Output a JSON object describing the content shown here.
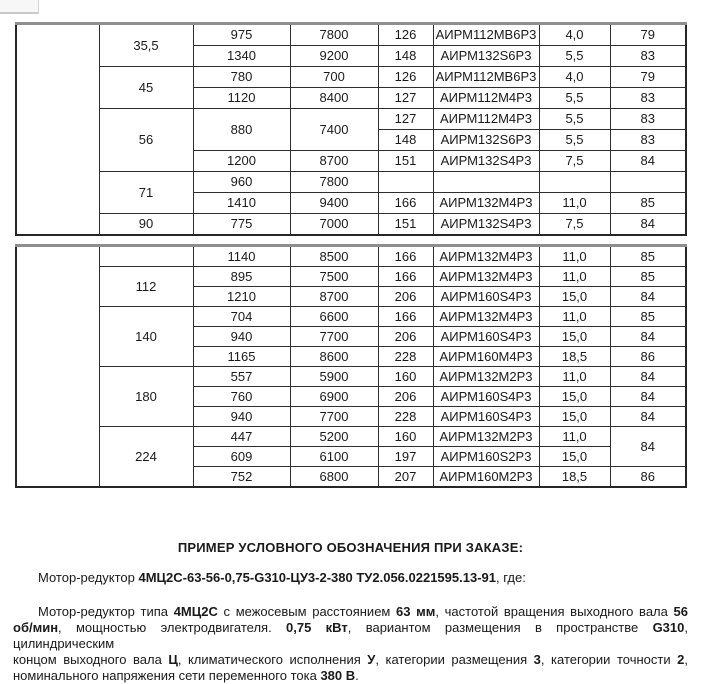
{
  "document": {
    "background": "#ffffff",
    "text_color": "#1a1a1a",
    "language": "ru"
  },
  "tables": [
    {
      "name": "upper-ratio-table",
      "rows": [
        [
          {
            "t": "",
            "rs": 10
          },
          {
            "t": "35,5",
            "rs": 2
          },
          {
            "t": "975"
          },
          {
            "t": "7800"
          },
          {
            "t": "126"
          },
          {
            "t": "АИРМ112МВ6Р3"
          },
          {
            "t": "4,0"
          },
          {
            "t": "79"
          }
        ],
        [
          {
            "t": "1340"
          },
          {
            "t": "9200"
          },
          {
            "t": "148"
          },
          {
            "t": "АИРМ132S6Р3"
          },
          {
            "t": "5,5"
          },
          {
            "t": "83"
          }
        ],
        [
          {
            "t": "45",
            "rs": 2
          },
          {
            "t": "780"
          },
          {
            "t": "700"
          },
          {
            "t": "126"
          },
          {
            "t": "АИРМ112МВ6Р3"
          },
          {
            "t": "4,0"
          },
          {
            "t": "79"
          }
        ],
        [
          {
            "t": "1120"
          },
          {
            "t": "8400"
          },
          {
            "t": "127"
          },
          {
            "t": "АИРМ112М4Р3"
          },
          {
            "t": "5,5"
          },
          {
            "t": "83"
          }
        ],
        [
          {
            "t": "56",
            "rs": 3
          },
          {
            "t": "880",
            "rs": 2
          },
          {
            "t": "7400",
            "rs": 2
          },
          {
            "t": "127"
          },
          {
            "t": "АИРМ112М4Р3"
          },
          {
            "t": "5,5"
          },
          {
            "t": "83"
          }
        ],
        [
          {
            "t": "148"
          },
          {
            "t": "АИРМ132S6Р3"
          },
          {
            "t": "5,5"
          },
          {
            "t": "83"
          }
        ],
        [
          {
            "t": "1200"
          },
          {
            "t": "8700"
          },
          {
            "t": "151"
          },
          {
            "t": "АИРМ132S4Р3"
          },
          {
            "t": "7,5"
          },
          {
            "t": "84"
          }
        ],
        [
          {
            "t": "71",
            "rs": 2
          },
          {
            "t": "960"
          },
          {
            "t": "7800"
          },
          {
            "t": ""
          },
          {
            "t": ""
          },
          {
            "t": ""
          },
          {
            "t": ""
          }
        ],
        [
          {
            "t": "1410"
          },
          {
            "t": "9400"
          },
          {
            "t": "166"
          },
          {
            "t": "АИРМ132М4Р3"
          },
          {
            "t": "11,0"
          },
          {
            "t": "85"
          }
        ],
        [
          {
            "t": "90"
          },
          {
            "t": "775"
          },
          {
            "t": "7000"
          },
          {
            "t": "151"
          },
          {
            "t": "АИРМ132S4Р3"
          },
          {
            "t": "7,5"
          },
          {
            "t": "84"
          }
        ]
      ]
    },
    {
      "name": "lower-ratio-table",
      "rows": [
        [
          {
            "t": "",
            "rs": 12
          },
          {
            "t": ""
          },
          {
            "t": "1140"
          },
          {
            "t": "8500"
          },
          {
            "t": "166"
          },
          {
            "t": "АИРМ132М4Р3"
          },
          {
            "t": "11,0"
          },
          {
            "t": "85"
          }
        ],
        [
          {
            "t": "112",
            "rs": 2
          },
          {
            "t": "895"
          },
          {
            "t": "7500"
          },
          {
            "t": "166"
          },
          {
            "t": "АИРМ132М4Р3"
          },
          {
            "t": "11,0"
          },
          {
            "t": "85"
          }
        ],
        [
          {
            "t": "1210"
          },
          {
            "t": "8700"
          },
          {
            "t": "206"
          },
          {
            "t": "АИРМ160S4Р3"
          },
          {
            "t": "15,0"
          },
          {
            "t": "84"
          }
        ],
        [
          {
            "t": "140",
            "rs": 3,
            "va": "top"
          },
          {
            "t": "704"
          },
          {
            "t": "6600"
          },
          {
            "t": "166"
          },
          {
            "t": "АИРМ132М4Р3"
          },
          {
            "t": "11,0"
          },
          {
            "t": "85"
          }
        ],
        [
          {
            "t": "940"
          },
          {
            "t": "7700"
          },
          {
            "t": "206"
          },
          {
            "t": "АИРМ160S4Р3"
          },
          {
            "t": "15,0"
          },
          {
            "t": "84"
          }
        ],
        [
          {
            "t": "1165"
          },
          {
            "t": "8600"
          },
          {
            "t": "228"
          },
          {
            "t": "АИРМ160М4Р3"
          },
          {
            "t": "18,5"
          },
          {
            "t": "86"
          }
        ],
        [
          {
            "t": "180",
            "rs": 3,
            "va": "top"
          },
          {
            "t": "557"
          },
          {
            "t": "5900"
          },
          {
            "t": "160"
          },
          {
            "t": "АИРМ132М2Р3"
          },
          {
            "t": "11,0"
          },
          {
            "t": "84"
          }
        ],
        [
          {
            "t": "760"
          },
          {
            "t": "6900"
          },
          {
            "t": "206"
          },
          {
            "t": "АИРМ160S4Р3"
          },
          {
            "t": "15,0"
          },
          {
            "t": "84"
          }
        ],
        [
          {
            "t": "940"
          },
          {
            "t": "7700"
          },
          {
            "t": "228"
          },
          {
            "t": "АИРМ160S4Р3"
          },
          {
            "t": "15,0"
          },
          {
            "t": "84"
          }
        ],
        [
          {
            "t": "224",
            "rs": 3,
            "va": "top"
          },
          {
            "t": "447"
          },
          {
            "t": "5200"
          },
          {
            "t": "160"
          },
          {
            "t": "АИРМ132М2Р3"
          },
          {
            "t": "11,0"
          },
          {
            "t": "84",
            "rs": 2
          }
        ],
        [
          {
            "t": "609"
          },
          {
            "t": "6100"
          },
          {
            "t": "197"
          },
          {
            "t": "АИРМ160S2Р3"
          },
          {
            "t": "15,0"
          }
        ],
        [
          {
            "t": "752"
          },
          {
            "t": "6800"
          },
          {
            "t": "207"
          },
          {
            "t": "АИРМ160М2Р3"
          },
          {
            "t": "18,5"
          },
          {
            "t": "86"
          }
        ]
      ]
    }
  ],
  "example": {
    "heading": "ПРИМЕР УСЛОВНОГО ОБОЗНАЧЕНИЯ ПРИ ЗАКАЗЕ:",
    "order_line": [
      {
        "t": "Мотор-редуктор ",
        "b": false
      },
      {
        "t": "4МЦ2С-63-56-0,75-G310-ЦУ3-2-380 ТУ2.056.0221595.13-91",
        "b": true
      },
      {
        "t": ", где:",
        "b": false
      }
    ],
    "description_lines": [
      [
        {
          "t": "Мотор-редуктор типа ",
          "b": false
        },
        {
          "t": "4МЦ2С",
          "b": true
        },
        {
          "t": " с межосевым расстоянием ",
          "b": false
        },
        {
          "t": "63 мм",
          "b": true
        },
        {
          "t": ", частотой вращения выходного вала ",
          "b": false
        },
        {
          "t": "56",
          "b": true
        }
      ],
      [
        {
          "t": "об/мин",
          "b": true
        },
        {
          "t": ", мощностью электродвигателя. ",
          "b": false
        },
        {
          "t": "0,75 кВт",
          "b": true
        },
        {
          "t": ", вариантом размещения в пространстве ",
          "b": false
        },
        {
          "t": "G310",
          "b": true
        },
        {
          "t": ", цилиндрическим",
          "b": false
        }
      ],
      [
        {
          "t": "концом выходного вала ",
          "b": false
        },
        {
          "t": "Ц",
          "b": true
        },
        {
          "t": ", климатического исполнения ",
          "b": false
        },
        {
          "t": "У",
          "b": true
        },
        {
          "t": ", категории размещения ",
          "b": false
        },
        {
          "t": "3",
          "b": true
        },
        {
          "t": ", категории точности ",
          "b": false
        },
        {
          "t": "2",
          "b": true
        },
        {
          "t": ",",
          "b": false
        }
      ],
      [
        {
          "t": "номинального напряжения сети переменного тока ",
          "b": false
        },
        {
          "t": "380 В",
          "b": true
        },
        {
          "t": ".",
          "b": false
        }
      ]
    ]
  }
}
